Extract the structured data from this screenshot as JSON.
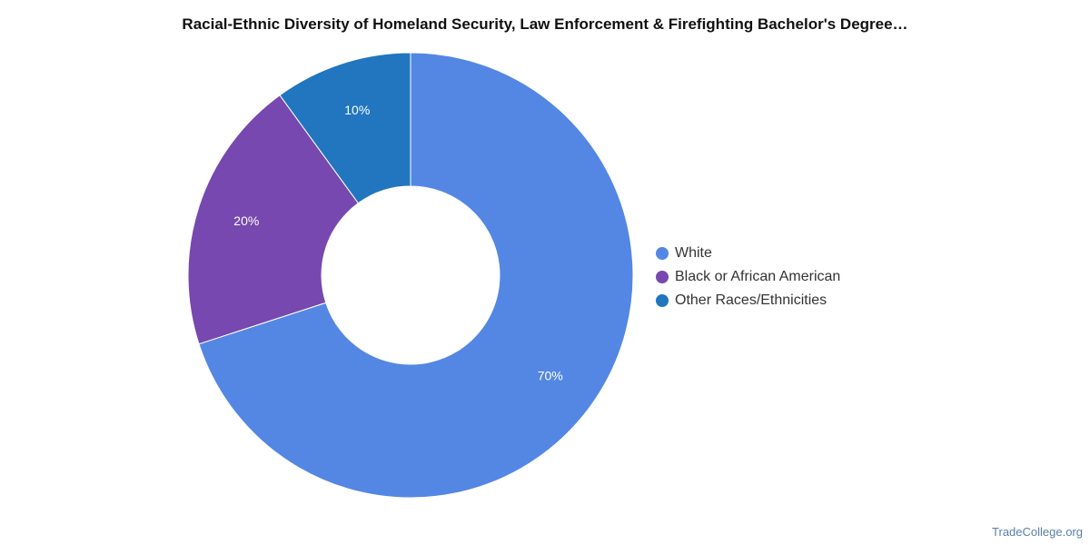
{
  "chart_data": {
    "type": "pie",
    "title": "Racial-Ethnic Diversity of Homeland Security, Law Enforcement & Firefighting Bachelor's Degree…",
    "donut": true,
    "categories": [
      "White",
      "Black or African American",
      "Other Races/Ethnicities"
    ],
    "values": [
      70,
      20,
      10
    ],
    "value_labels": [
      "70%",
      "20%",
      "10%"
    ],
    "colors": [
      "#5487e3",
      "#7748af",
      "#2176bf"
    ],
    "legend": "right"
  },
  "watermark": "TradeCollege.org"
}
